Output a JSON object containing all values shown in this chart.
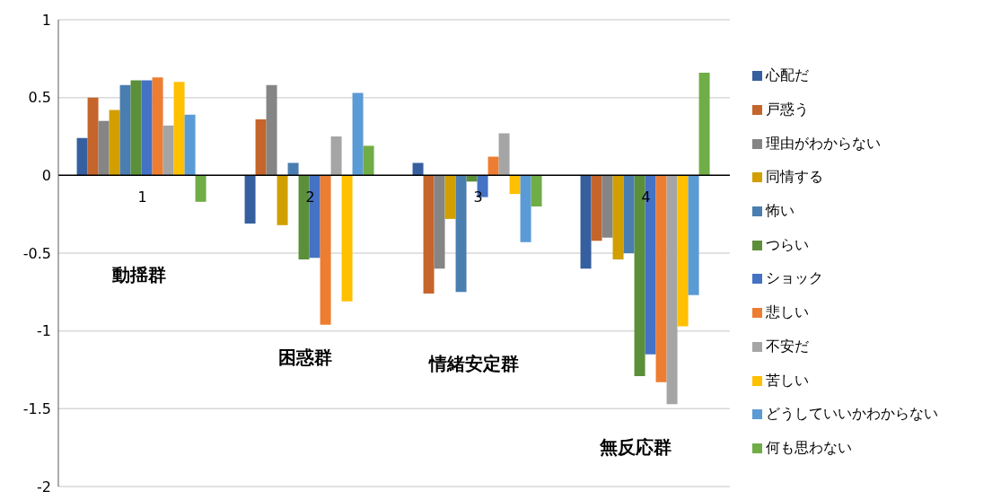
{
  "chart_data": {
    "type": "bar",
    "categories": [
      "1",
      "2",
      "3",
      "4"
    ],
    "series": [
      {
        "name": "心配だ",
        "color": "#365f9f",
        "values": [
          0.24,
          -0.31,
          0.08,
          -0.6
        ]
      },
      {
        "name": "戸惑う",
        "color": "#c5652b",
        "values": [
          0.5,
          0.36,
          -0.76,
          -0.42
        ]
      },
      {
        "name": "理由がわからない",
        "color": "#858585",
        "values": [
          0.35,
          0.58,
          -0.6,
          -0.4
        ]
      },
      {
        "name": "同情する",
        "color": "#d19f00",
        "values": [
          0.42,
          -0.32,
          -0.28,
          -0.54
        ]
      },
      {
        "name": "怖い",
        "color": "#4a7eb0",
        "values": [
          0.58,
          0.08,
          -0.75,
          -0.5
        ]
      },
      {
        "name": "つらい",
        "color": "#5b8f3a",
        "values": [
          0.61,
          -0.54,
          -0.04,
          -1.29
        ]
      },
      {
        "name": "ショック",
        "color": "#4472c4",
        "values": [
          0.61,
          -0.53,
          -0.14,
          -1.15
        ]
      },
      {
        "name": "悲しい",
        "color": "#ed7d31",
        "values": [
          0.63,
          -0.96,
          0.12,
          -1.33
        ]
      },
      {
        "name": "不安だ",
        "color": "#a5a5a5",
        "values": [
          0.32,
          0.25,
          0.27,
          -1.47
        ]
      },
      {
        "name": "苦しい",
        "color": "#ffc000",
        "values": [
          0.6,
          -0.81,
          -0.12,
          -0.97
        ]
      },
      {
        "name": "どうしていいかわからない",
        "color": "#5b9bd5",
        "values": [
          0.39,
          0.53,
          -0.43,
          -0.77
        ]
      },
      {
        "name": "何も思わない",
        "color": "#70ad47",
        "values": [
          -0.17,
          0.19,
          -0.2,
          0.66
        ]
      }
    ],
    "ylim": [
      -2,
      1
    ],
    "yticks": [
      -2,
      -1.5,
      -1,
      -0.5,
      0,
      0.5,
      1
    ],
    "grid": "y",
    "legend": "right",
    "annotations": [
      "動揺群",
      "困惑群",
      "情緒安定群",
      "無反応群"
    ]
  }
}
